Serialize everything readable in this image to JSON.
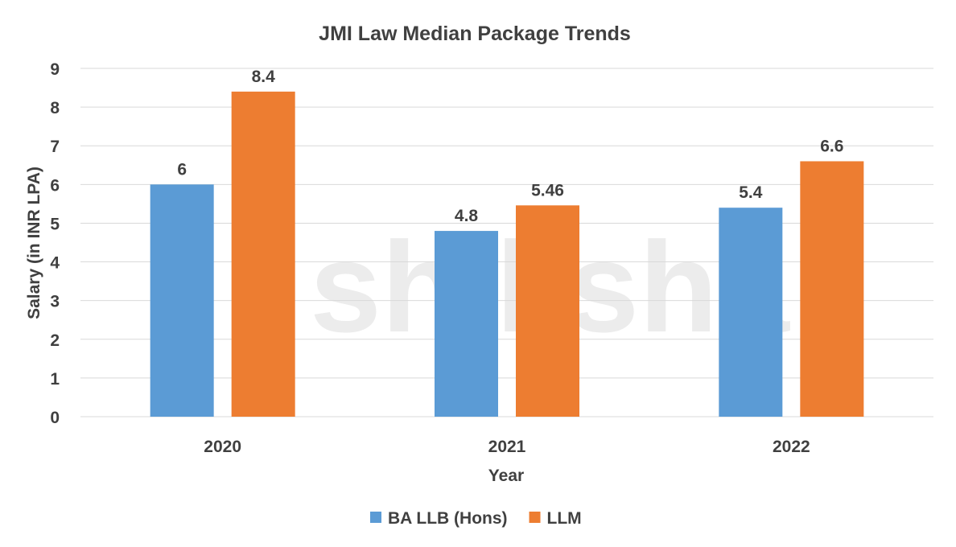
{
  "chart_data": {
    "type": "bar",
    "title": "JMI Law Median Package Trends",
    "xlabel": "Year",
    "ylabel": "Salary (in INR LPA)",
    "categories": [
      "2020",
      "2021",
      "2022"
    ],
    "series": [
      {
        "name": "BA LLB (Hons)",
        "values": [
          6,
          4.8,
          5.4
        ],
        "labels": [
          "6",
          "4.8",
          "5.4"
        ],
        "color": "#5B9BD5"
      },
      {
        "name": "LLM",
        "values": [
          8.4,
          5.46,
          6.6
        ],
        "labels": [
          "8.4",
          "5.46",
          "6.6"
        ],
        "color": "#ED7D31"
      }
    ],
    "ylim": [
      0,
      9
    ],
    "yticks": [
      "0",
      "1",
      "2",
      "3",
      "4",
      "5",
      "6",
      "7",
      "8",
      "9"
    ],
    "grid": true,
    "legend": "bottom",
    "watermark": "shiksha"
  }
}
